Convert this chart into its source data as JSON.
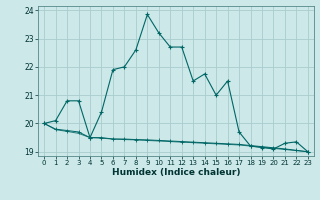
{
  "xlabel": "Humidex (Indice chaleur)",
  "bg_color": "#cce8e8",
  "grid_color": "#aacccc",
  "line_color": "#006666",
  "xlim": [
    -0.5,
    23.5
  ],
  "ylim": [
    18.85,
    24.15
  ],
  "yticks": [
    19,
    20,
    21,
    22,
    23,
    24
  ],
  "xticks": [
    0,
    1,
    2,
    3,
    4,
    5,
    6,
    7,
    8,
    9,
    10,
    11,
    12,
    13,
    14,
    15,
    16,
    17,
    18,
    19,
    20,
    21,
    22,
    23
  ],
  "series1_x": [
    0,
    1,
    2,
    3,
    4,
    5,
    6,
    7,
    8,
    9,
    10,
    11,
    12,
    13,
    14,
    15,
    16,
    17,
    18,
    19,
    20,
    21,
    22,
    23
  ],
  "series1_y": [
    20.0,
    20.1,
    20.8,
    20.8,
    19.5,
    20.4,
    21.9,
    22.0,
    22.6,
    23.85,
    23.2,
    22.7,
    22.7,
    21.5,
    21.75,
    21.0,
    21.5,
    19.7,
    19.2,
    19.15,
    19.1,
    19.3,
    19.35,
    19.0
  ],
  "series2_x": [
    0,
    1,
    2,
    3,
    4,
    5,
    6,
    7,
    8,
    9,
    10,
    11,
    12,
    13,
    14,
    15,
    16,
    17,
    18,
    19,
    20,
    21,
    22,
    23
  ],
  "series2_y": [
    20.0,
    19.8,
    19.75,
    19.7,
    19.5,
    19.5,
    19.45,
    19.45,
    19.43,
    19.42,
    19.4,
    19.38,
    19.36,
    19.34,
    19.32,
    19.3,
    19.28,
    19.26,
    19.22,
    19.18,
    19.14,
    19.1,
    19.05,
    19.0
  ],
  "series3_x": [
    0,
    1,
    2,
    3,
    4,
    5,
    6,
    7,
    8,
    9,
    10,
    11,
    12,
    13,
    14,
    15,
    16,
    17,
    18,
    19,
    20,
    21,
    22,
    23
  ],
  "series3_y": [
    20.0,
    19.78,
    19.72,
    19.65,
    19.5,
    19.48,
    19.45,
    19.43,
    19.42,
    19.4,
    19.38,
    19.36,
    19.34,
    19.32,
    19.3,
    19.28,
    19.26,
    19.24,
    19.2,
    19.16,
    19.12,
    19.08,
    19.04,
    19.0
  ]
}
